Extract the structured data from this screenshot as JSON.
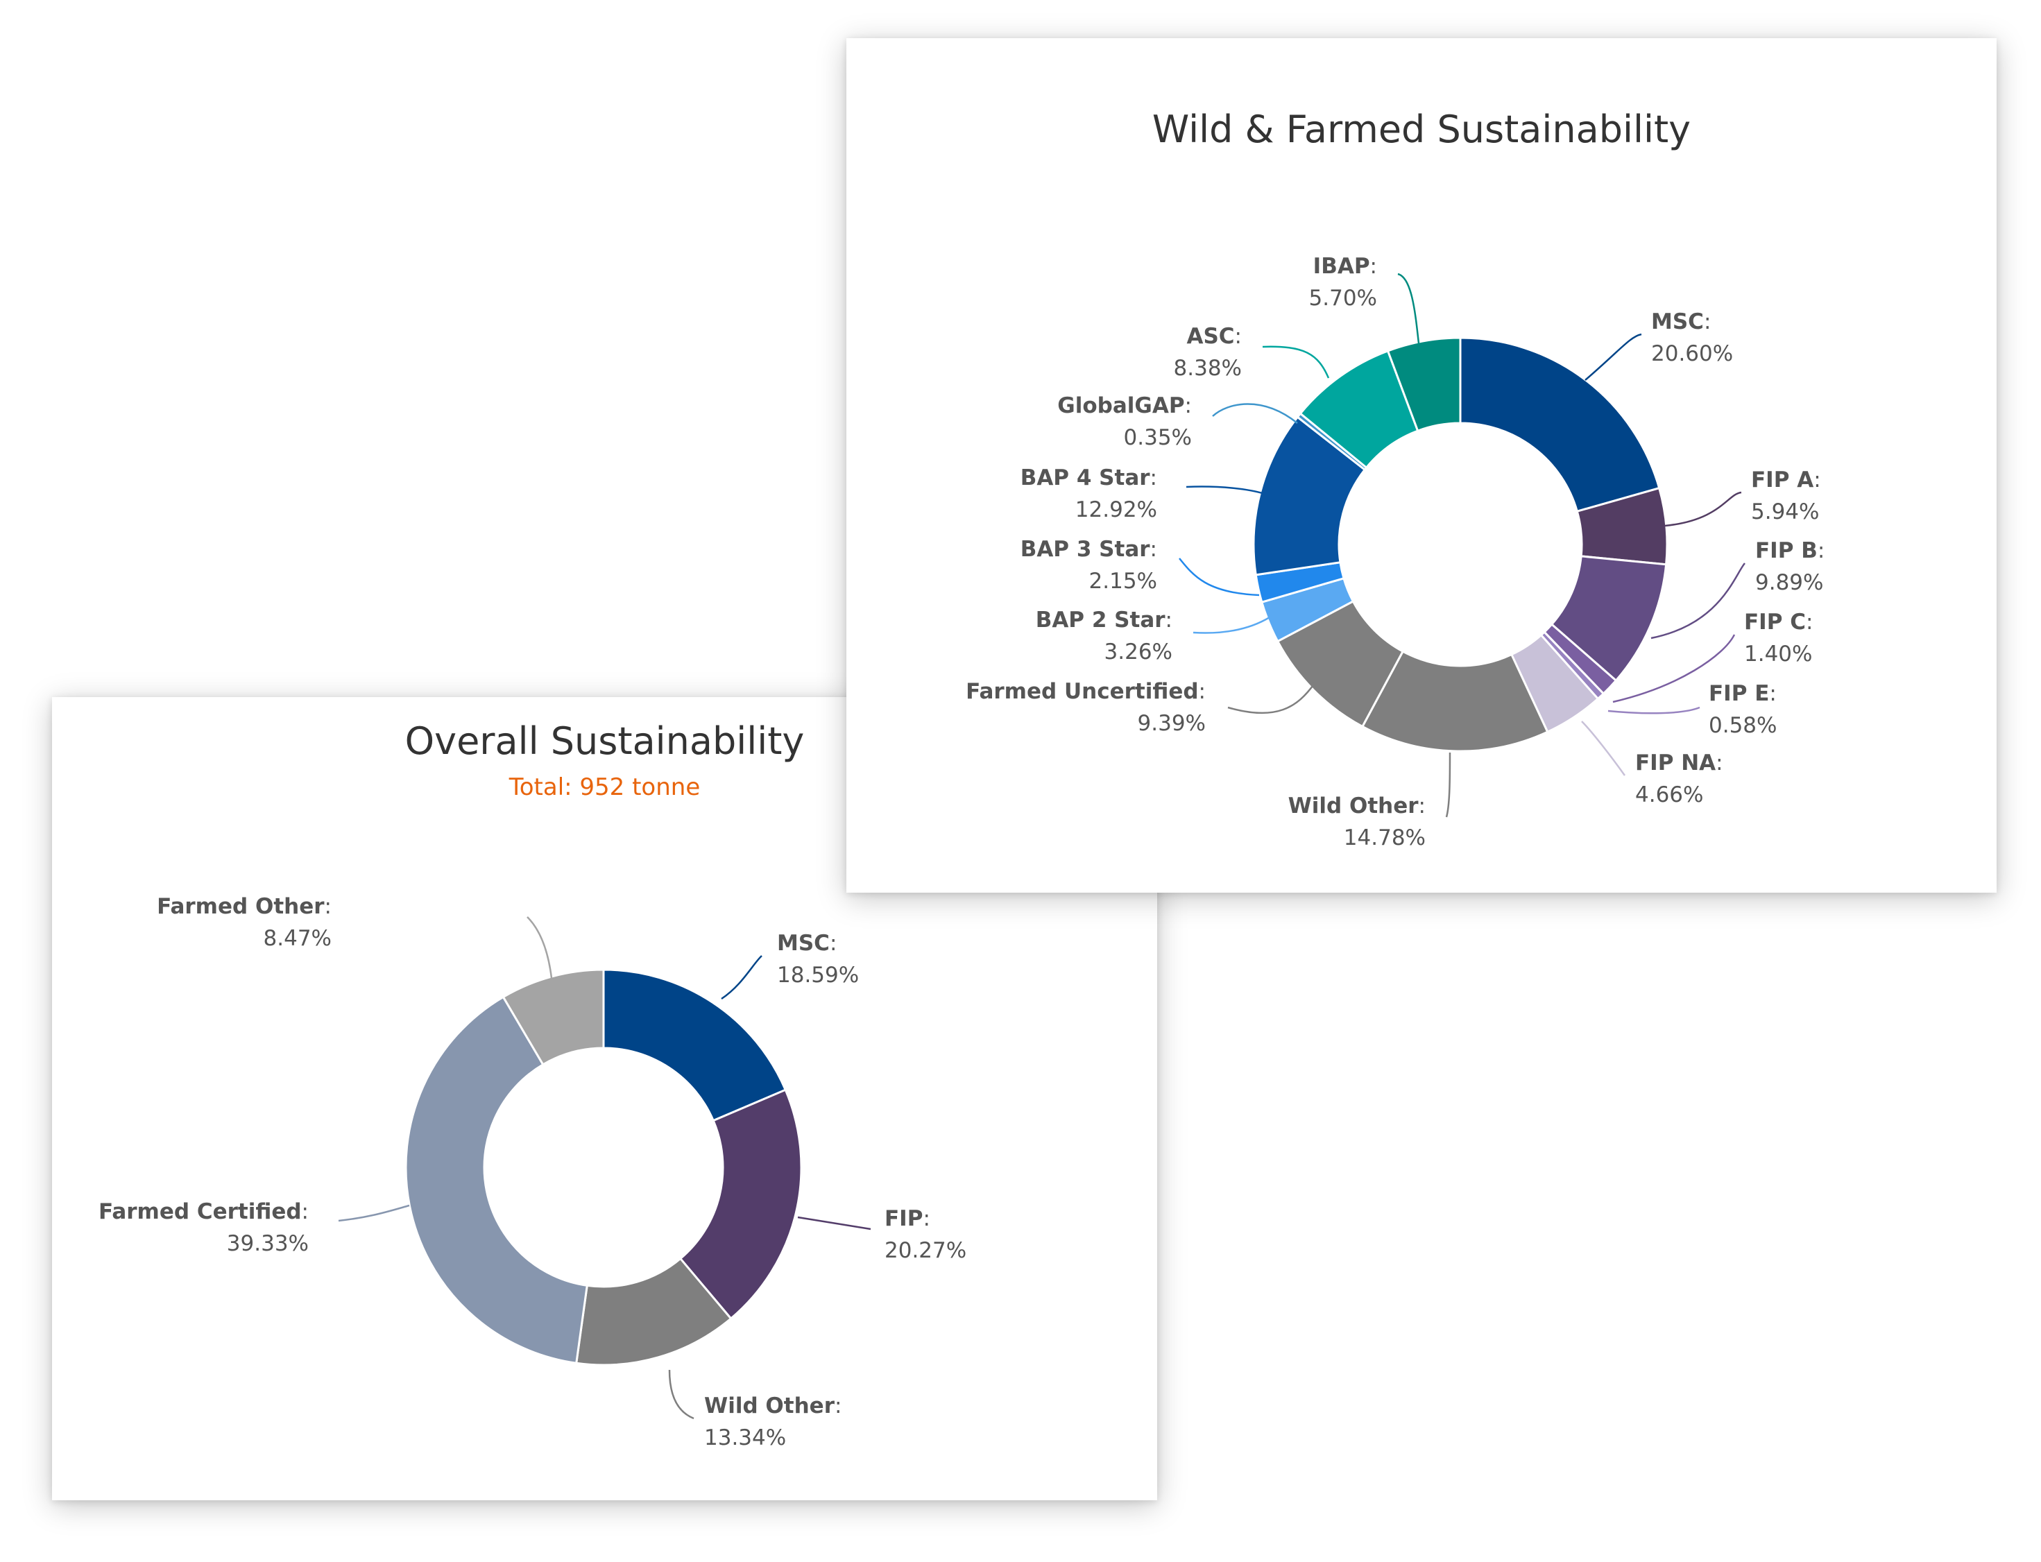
{
  "charts": {
    "wild": {
      "title": "Wild & Farmed Sustainability",
      "chart_data": {
        "type": "pie",
        "variant": "donut",
        "title": "Wild & Farmed Sustainability",
        "categories": [
          "MSC",
          "FIP A",
          "FIP B",
          "FIP C",
          "FIP E",
          "FIP NA",
          "Wild Other",
          "Farmed Uncertified",
          "BAP 2 Star",
          "BAP 3 Star",
          "BAP 4 Star",
          "GlobalGAP",
          "ASC",
          "IBAP"
        ],
        "values": [
          20.6,
          5.94,
          9.89,
          1.4,
          0.58,
          4.66,
          14.78,
          9.39,
          3.26,
          2.15,
          12.92,
          0.35,
          8.38,
          5.7
        ],
        "labels": [
          "20.60%",
          "5.94%",
          "9.89%",
          "1.40%",
          "0.58%",
          "4.66%",
          "14.78%",
          "9.39%",
          "3.26%",
          "2.15%",
          "12.92%",
          "0.35%",
          "8.38%",
          "5.70%"
        ],
        "colors": [
          "#004488",
          "#533d63",
          "#624d84",
          "#7a5fa1",
          "#9783c0",
          "#c8c1d8",
          "#7f7f7f",
          "#7f7f7f",
          "#5aa9f2",
          "#2188ec",
          "#0853a0",
          "#3f96cc",
          "#00a69e",
          "#008b7f"
        ]
      }
    },
    "overall": {
      "title": "Overall Sustainability",
      "subtitle": "Total: 952 tonne",
      "chart_data": {
        "type": "pie",
        "variant": "donut",
        "title": "Overall Sustainability",
        "subtitle": "Total: 952 tonne",
        "categories": [
          "MSC",
          "FIP",
          "Wild Other",
          "Farmed Certified",
          "Farmed Other"
        ],
        "values": [
          18.59,
          20.27,
          13.34,
          39.33,
          8.47
        ],
        "labels": [
          "18.59%",
          "20.27%",
          "13.34%",
          "39.33%",
          "8.47%"
        ],
        "colors": [
          "#004488",
          "#533d6a",
          "#7f7f7f",
          "#8796ae",
          "#a4a4a4"
        ]
      }
    }
  }
}
